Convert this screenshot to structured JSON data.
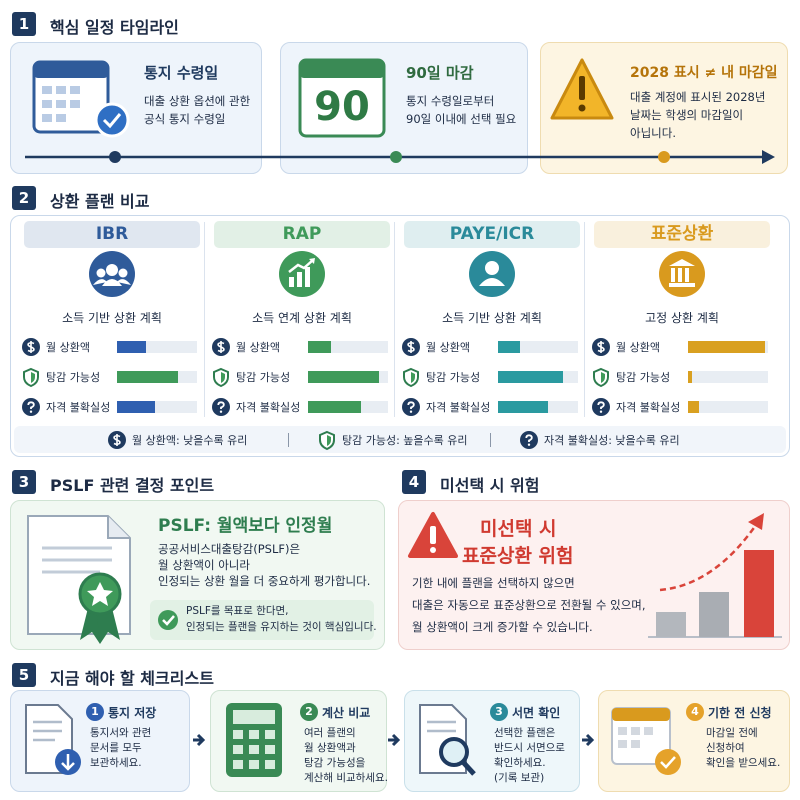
{
  "timeline": {
    "number": "1",
    "title": "핵심 일정 타임라인",
    "cards": [
      {
        "title": "통지 수령일",
        "lines": [
          "대출 상환 옵션에 관한",
          "공식 통지 수령일"
        ]
      },
      {
        "icon_label": "90",
        "title": "90일 마감",
        "lines": [
          "통지 수령일로부터",
          "90일 이내에 선택 필요"
        ]
      },
      {
        "title": "2028 표시 ≠ 내 마감일",
        "lines": [
          "대출 계정에 표시된 2028년",
          "날짜는 학생의 마감일이",
          "아닙니다."
        ]
      }
    ]
  },
  "comparison": {
    "number": "2",
    "title": "상환 플랜 비교",
    "metrics": [
      "월 상환액",
      "탕감 가능성",
      "자격 불확실성"
    ],
    "xlim": [
      0,
      100
    ],
    "plans": [
      {
        "name": "IBR",
        "subtitle": "소득 기반 상환 계획",
        "color": "#2f5b9a",
        "values": [
          36,
          76,
          48
        ],
        "colors": [
          "#2f5fb0",
          "#3f9a5a",
          "#2f5fb0"
        ]
      },
      {
        "name": "RAP",
        "subtitle": "소득 연계 상환 계획",
        "color": "#3f9a5a",
        "values": [
          29,
          89,
          66
        ],
        "colors": [
          "#3f9a5a",
          "#3f9a5a",
          "#3f9a5a"
        ]
      },
      {
        "name": "PAYE/ICR",
        "subtitle": "소득 기반 상환 계획",
        "color": "#2a8a9a",
        "values": [
          27,
          81,
          62
        ],
        "colors": [
          "#2a9aa0",
          "#2a9aa0",
          "#2a9aa0"
        ]
      },
      {
        "name": "표준상환",
        "subtitle": "고정 상환 계획",
        "color": "#d99a1e",
        "values": [
          96,
          5,
          14
        ],
        "colors": [
          "#d9a020",
          "#d9a020",
          "#d9a020"
        ]
      }
    ],
    "legend": [
      "월 상환액: 낮을수록 유리",
      "탕감 가능성: 높을수록 유리",
      "자격 불확실성: 낮을수록 유리"
    ]
  },
  "pslf": {
    "number": "3",
    "title": "PSLF 관련 결정 포인트",
    "headline": "PSLF: 월액보다 인정월",
    "lines": [
      "공공서비스대출탕감(PSLF)은",
      "월 상환액이 아니라",
      "인정되는 상환 월을 더 중요하게 평가합니다."
    ],
    "note": [
      "PSLF를 목표로 한다면,",
      "인정되는 플랜을 유지하는 것이 핵심입니다."
    ]
  },
  "risk": {
    "number": "4",
    "title": "미선택 시 위험",
    "headline": [
      "미선택 시",
      "표준상환 위험"
    ],
    "lines": [
      "기한 내에 플랜을 선택하지 않으면",
      "대출은 자동으로 표준상환으로 전환될 수 있으며,",
      "월 상환액이 크게 증가할 수 있습니다."
    ]
  },
  "checklist": {
    "number": "5",
    "title": "지금 해야 할 체크리스트",
    "steps": [
      {
        "number": "1",
        "title": "통지 저장",
        "lines": [
          "통지서와 관련",
          "문서를 모두",
          "보관하세요."
        ]
      },
      {
        "number": "2",
        "title": "계산 비교",
        "lines": [
          "여러 플랜의",
          "월 상환액과",
          "탕감 가능성을",
          "계산해 비교하세요."
        ]
      },
      {
        "number": "3",
        "title": "서면 확인",
        "lines": [
          "선택한 플랜은",
          "반드시 서면으로",
          "확인하세요.",
          "(기록 보관)"
        ]
      },
      {
        "number": "4",
        "title": "기한 전 신청",
        "lines": [
          "마감일 전에",
          "신청하여",
          "확인을 받으세요."
        ]
      }
    ]
  }
}
